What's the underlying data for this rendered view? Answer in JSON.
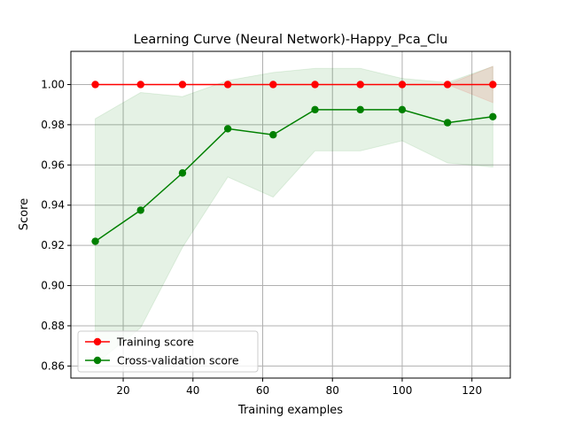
{
  "chart_data": {
    "type": "line",
    "title": "Learning Curve (Neural Network)-Happy_Pca_Clu",
    "xlabel": "Training examples",
    "ylabel": "Score",
    "xlim": [
      5,
      131
    ],
    "ylim": [
      0.854,
      1.0165
    ],
    "xticks": [
      20,
      40,
      60,
      80,
      100,
      120
    ],
    "yticks": [
      0.86,
      0.88,
      0.9,
      0.92,
      0.94,
      0.96,
      0.98,
      1.0
    ],
    "xtick_labels": [
      "20",
      "40",
      "60",
      "80",
      "100",
      "120"
    ],
    "ytick_labels": [
      "0.86",
      "0.88",
      "0.90",
      "0.92",
      "0.94",
      "0.96",
      "0.98",
      "1.00"
    ],
    "grid": true,
    "legend_position": "lower-left",
    "x": [
      12,
      25,
      37,
      50,
      63,
      75,
      88,
      100,
      113,
      126
    ],
    "series": [
      {
        "name": "Training score",
        "color": "#ff0000",
        "values": [
          1.0,
          1.0,
          1.0,
          1.0,
          1.0,
          1.0,
          1.0,
          1.0,
          1.0,
          1.0
        ],
        "band_lower": [
          1.0,
          1.0,
          1.0,
          1.0,
          1.0,
          1.0,
          1.0,
          1.0,
          1.0,
          0.991
        ],
        "band_upper": [
          1.0,
          1.0,
          1.0,
          1.0,
          1.0,
          1.0,
          1.0,
          1.0,
          1.0,
          1.009
        ]
      },
      {
        "name": "Cross-validation score",
        "color": "#008000",
        "values": [
          0.922,
          0.9375,
          0.956,
          0.978,
          0.975,
          0.9875,
          0.9875,
          0.9875,
          0.981,
          0.984
        ],
        "band_lower": [
          0.861,
          0.879,
          0.919,
          0.954,
          0.944,
          0.967,
          0.967,
          0.972,
          0.961,
          0.959
        ],
        "band_upper": [
          0.983,
          0.996,
          0.994,
          1.002,
          1.006,
          1.008,
          1.008,
          1.003,
          1.001,
          1.009
        ]
      }
    ],
    "band_color": "#008000"
  }
}
